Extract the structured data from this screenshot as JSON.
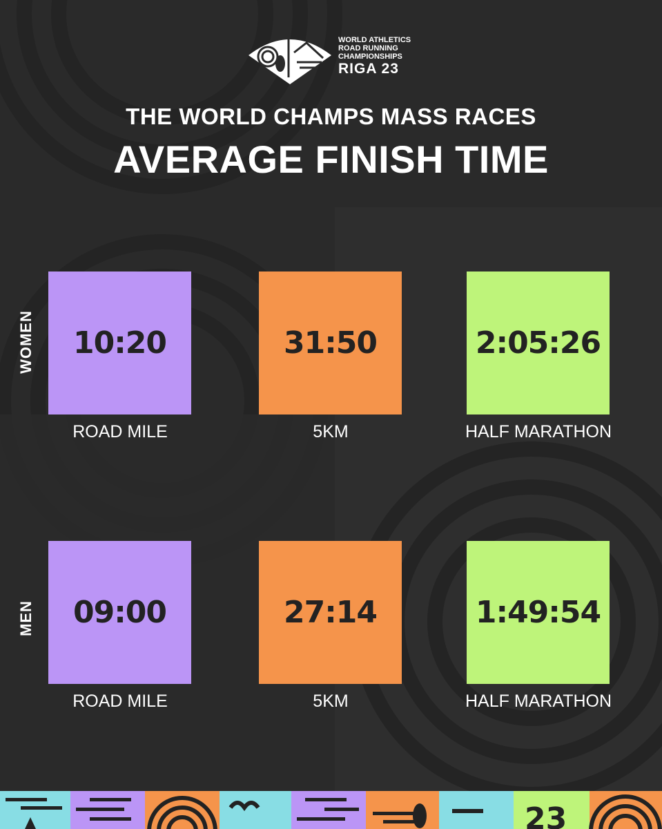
{
  "header": {
    "logo_lines": [
      "WORLD ATHLETICS",
      "ROAD RUNNING",
      "CHAMPIONSHIPS"
    ],
    "logo_big": "RIGA 23",
    "title": "THE WORLD CHAMPS MASS RACES",
    "subtitle": "AVERAGE FINISH TIME"
  },
  "colors": {
    "background": "#2a2a2a",
    "purple": "#bb95f6",
    "orange": "#f5944b",
    "green": "#bef47a",
    "cyan": "#88dde4"
  },
  "rows": [
    {
      "label": "WOMEN",
      "tiles": [
        {
          "time": "10:20",
          "event": "ROAD MILE"
        },
        {
          "time": "31:50",
          "event": "5KM"
        },
        {
          "time": "2:05:26",
          "event": "HALF MARATHON"
        }
      ]
    },
    {
      "label": "MEN",
      "tiles": [
        {
          "time": "09:00",
          "event": "ROAD MILE"
        },
        {
          "time": "27:14",
          "event": "5KM"
        },
        {
          "time": "1:49:54",
          "event": "HALF MARATHON"
        }
      ]
    }
  ]
}
